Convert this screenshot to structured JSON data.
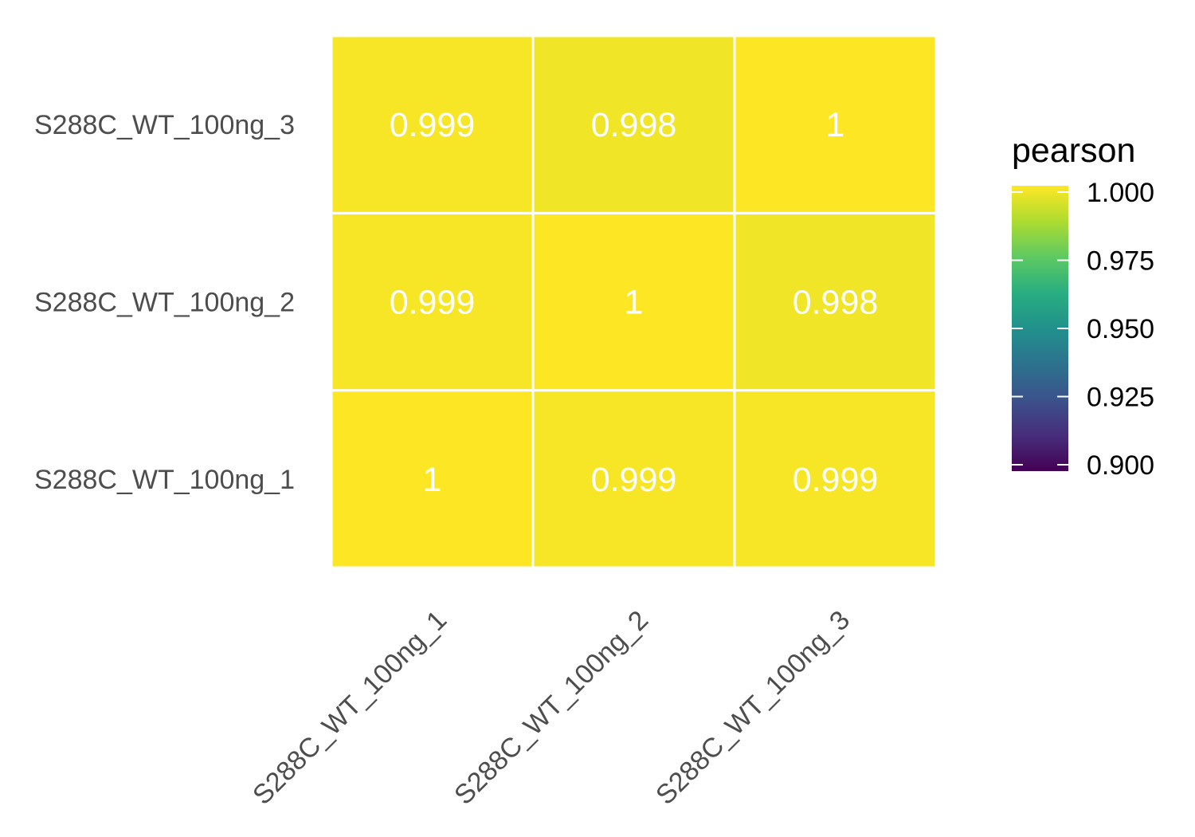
{
  "chart_data": {
    "type": "heatmap",
    "x_categories": [
      "S288C_WT_100ng_1",
      "S288C_WT_100ng_2",
      "S288C_WT_100ng_3"
    ],
    "y_categories": [
      "S288C_WT_100ng_1",
      "S288C_WT_100ng_2",
      "S288C_WT_100ng_3"
    ],
    "cells": [
      {
        "x": "S288C_WT_100ng_1",
        "y": "S288C_WT_100ng_1",
        "value": 1,
        "label": "1"
      },
      {
        "x": "S288C_WT_100ng_2",
        "y": "S288C_WT_100ng_1",
        "value": 0.999,
        "label": "0.999"
      },
      {
        "x": "S288C_WT_100ng_3",
        "y": "S288C_WT_100ng_1",
        "value": 0.999,
        "label": "0.999"
      },
      {
        "x": "S288C_WT_100ng_1",
        "y": "S288C_WT_100ng_2",
        "value": 0.999,
        "label": "0.999"
      },
      {
        "x": "S288C_WT_100ng_2",
        "y": "S288C_WT_100ng_2",
        "value": 1,
        "label": "1"
      },
      {
        "x": "S288C_WT_100ng_3",
        "y": "S288C_WT_100ng_2",
        "value": 0.998,
        "label": "0.998"
      },
      {
        "x": "S288C_WT_100ng_1",
        "y": "S288C_WT_100ng_3",
        "value": 0.999,
        "label": "0.999"
      },
      {
        "x": "S288C_WT_100ng_2",
        "y": "S288C_WT_100ng_3",
        "value": 0.998,
        "label": "0.998"
      },
      {
        "x": "S288C_WT_100ng_3",
        "y": "S288C_WT_100ng_3",
        "value": 1,
        "label": "1"
      }
    ],
    "legend": {
      "title": "pearson",
      "placement": "right",
      "range": [
        0.9,
        1.0
      ],
      "ticks": [
        {
          "value": 1.0,
          "label": "1.000"
        },
        {
          "value": 0.975,
          "label": "0.975"
        },
        {
          "value": 0.95,
          "label": "0.950"
        },
        {
          "value": 0.925,
          "label": "0.925"
        },
        {
          "value": 0.9,
          "label": "0.900"
        }
      ],
      "colorscale": "viridis"
    },
    "grid": false
  }
}
